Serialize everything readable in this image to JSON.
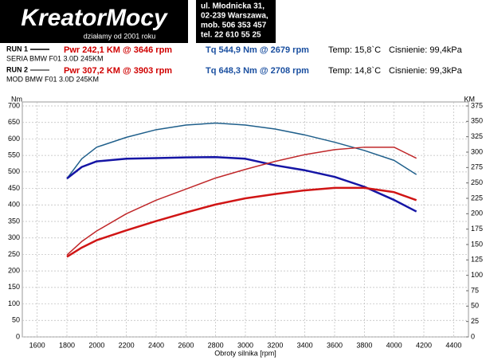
{
  "header": {
    "logo": "KreatorMocy",
    "slogan": "działamy od 2001 roku",
    "address": [
      "ul. Młodnicka 31,",
      "02-239  Warszawa,",
      "mob.  506 353 457",
      "tel.  22 610 55 25"
    ]
  },
  "runs": [
    {
      "label": "RUN 1",
      "power": "Pwr  242,1 KM @ 3646 rpm",
      "torque": "Tq 544,9 Nm @ 2679 rpm",
      "temp": "Temp: 15,8`C",
      "pressure": "Cisnienie: 99,4kPa",
      "description": "SERIA BMW F01 3.0D 245KM"
    },
    {
      "label": "RUN 2",
      "power": "Pwr  307,2 KM @ 3903 rpm",
      "torque": "Tq 648,3 Nm @ 2708 rpm",
      "temp": "Temp: 14,8`C",
      "pressure": "Cisnienie: 99,3kPa",
      "description": "MOD BMW F01 3.0D 245KM"
    }
  ],
  "chart_data": {
    "type": "line",
    "x_label": "Obroty silnika [rpm]",
    "y_label": "Nm",
    "y2_label": "KM",
    "x": [
      1800,
      1900,
      2000,
      2200,
      2400,
      2600,
      2800,
      3000,
      3200,
      3400,
      3600,
      3800,
      4000,
      4150
    ],
    "series": [
      {
        "color": "#1f5f8b",
        "width": 1.5,
        "values": [
          480,
          540,
          575,
          605,
          628,
          642,
          648,
          642,
          630,
          612,
          590,
          565,
          535,
          492
        ]
      },
      {
        "color": "#1515a5",
        "width": 2.5,
        "values": [
          480,
          515,
          532,
          540,
          542,
          544,
          545,
          540,
          520,
          505,
          485,
          455,
          415,
          380
        ]
      },
      {
        "color": "#c0282a",
        "width": 1.5,
        "axis": "y2",
        "values": [
          133,
          155,
          172,
          200,
          222,
          240,
          258,
          272,
          285,
          296,
          304,
          308,
          308,
          290
        ]
      },
      {
        "color": "#d01515",
        "width": 2.5,
        "axis": "y2",
        "values": [
          130,
          145,
          157,
          173,
          188,
          202,
          215,
          225,
          232,
          238,
          242,
          242,
          235,
          222
        ]
      }
    ],
    "xlim": [
      1500,
      4500
    ],
    "xticks": [
      1600,
      1800,
      2000,
      2200,
      2400,
      2600,
      2800,
      3000,
      3200,
      3400,
      3600,
      3800,
      4000,
      4200,
      4400
    ],
    "ylim": [
      0,
      700
    ],
    "yticks": [
      0,
      50,
      100,
      150,
      200,
      250,
      300,
      350,
      400,
      450,
      500,
      550,
      600,
      650,
      700
    ],
    "y2lim": [
      0,
      375
    ],
    "y2ticks": [
      0,
      25,
      50,
      75,
      100,
      125,
      150,
      175,
      200,
      225,
      250,
      275,
      300,
      325,
      350,
      375
    ],
    "grid": true
  }
}
